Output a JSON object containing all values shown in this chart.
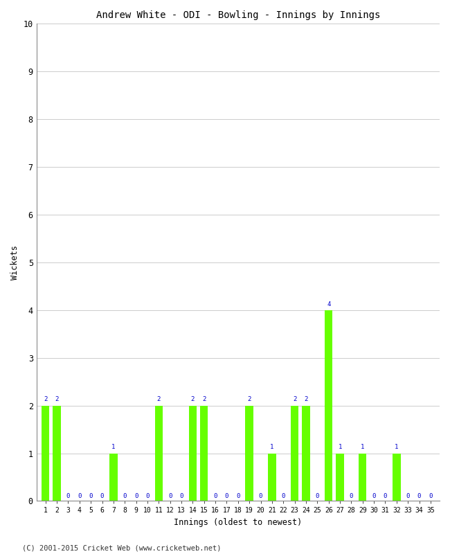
{
  "title": "Andrew White - ODI - Bowling - Innings by Innings",
  "xlabel": "Innings (oldest to newest)",
  "ylabel": "Wickets",
  "background_color": "#ffffff",
  "bar_color": "#66ff00",
  "label_color": "#0000cc",
  "footer": "(C) 2001-2015 Cricket Web (www.cricketweb.net)",
  "ylim": [
    0,
    10
  ],
  "yticks": [
    0,
    1,
    2,
    3,
    4,
    5,
    6,
    7,
    8,
    9,
    10
  ],
  "innings": [
    1,
    2,
    3,
    4,
    5,
    6,
    7,
    8,
    9,
    10,
    11,
    12,
    13,
    14,
    15,
    16,
    17,
    18,
    19,
    20,
    21,
    22,
    23,
    24,
    25,
    26,
    27,
    28,
    29,
    30,
    31,
    32,
    33,
    34,
    35
  ],
  "wickets": [
    2,
    2,
    0,
    0,
    0,
    0,
    1,
    0,
    0,
    0,
    2,
    0,
    0,
    2,
    2,
    0,
    0,
    0,
    2,
    0,
    1,
    0,
    2,
    2,
    0,
    4,
    1,
    0,
    1,
    0,
    0,
    1,
    0,
    0,
    0
  ]
}
